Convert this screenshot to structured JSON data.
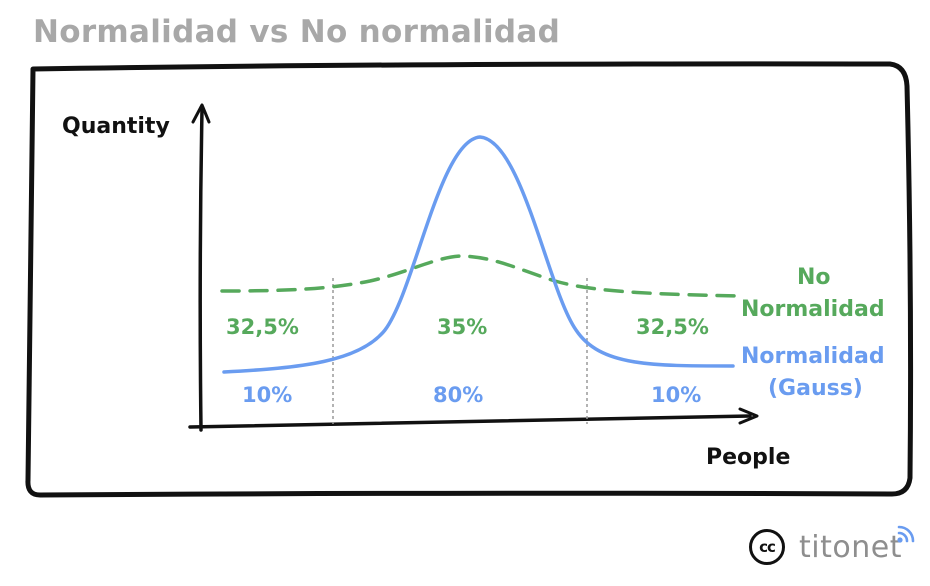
{
  "title": "Normalidad vs No normalidad",
  "axes": {
    "y_label": "Quantity",
    "x_label": "People"
  },
  "legend": {
    "non_normal": {
      "line1": "No",
      "line2": "Normalidad",
      "color": "#56a95c"
    },
    "normal": {
      "line1": "Normalidad",
      "line2": "(Gauss)",
      "color": "#6a9cf0"
    }
  },
  "non_normal_shares": [
    "32,5%",
    "35%",
    "32,5%"
  ],
  "normal_shares": [
    "10%",
    "80%",
    "10%"
  ],
  "footer": {
    "license_icon": "cc",
    "brand": "titonet"
  }
}
